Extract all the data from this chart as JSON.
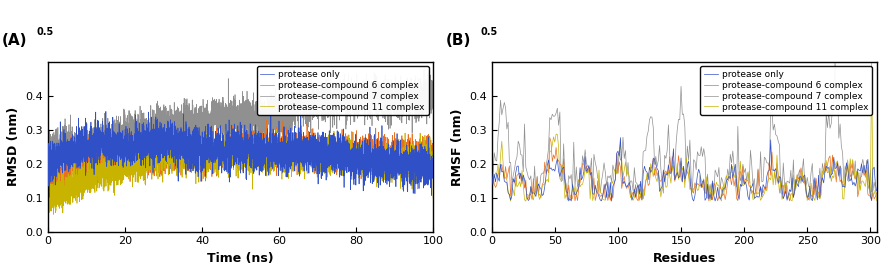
{
  "panel_A": {
    "label": "(A)",
    "superscript": "0.5",
    "xlabel": "Time (ns)",
    "ylabel": "RMSD (nm)",
    "xlim": [
      0,
      100
    ],
    "ylim": [
      0,
      0.5
    ],
    "yticks": [
      0,
      0.1,
      0.2,
      0.3,
      0.4
    ],
    "xticks": [
      0,
      20,
      40,
      60,
      80,
      100
    ],
    "n_points": 5000
  },
  "panel_B": {
    "label": "(B)",
    "superscript": "0.5",
    "xlabel": "Residues",
    "ylabel": "RMSF (nm)",
    "xlim": [
      0,
      305
    ],
    "ylim": [
      0,
      0.5
    ],
    "yticks": [
      0,
      0.1,
      0.2,
      0.3,
      0.4
    ],
    "xticks": [
      0,
      50,
      100,
      150,
      200,
      250,
      300
    ],
    "n_points": 306
  },
  "legend_labels": [
    "protease only",
    "protease-compound 6 complex",
    "protease-compound 7 complex",
    "protease-compound 11 complex"
  ],
  "colors": {
    "blue": "#3050C8",
    "orange": "#E87020",
    "gray": "#909090",
    "yellow": "#C8B400"
  },
  "linewidth": 0.5,
  "legend_fontsize": 6.5,
  "axis_label_fontsize": 9,
  "tick_fontsize": 8,
  "panel_label_fontsize": 11,
  "background_color": "#ffffff",
  "figure_border_color": "#000000"
}
